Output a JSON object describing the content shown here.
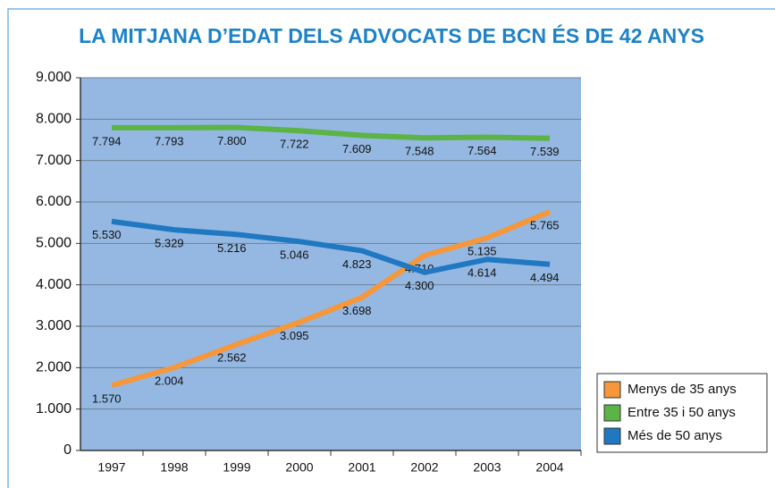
{
  "chart_data": {
    "type": "line",
    "title": "LA MITJANA D’EDAT DELS ADVOCATS DE BCN ÉS DE 42 ANYS",
    "categories": [
      "1997",
      "1998",
      "1999",
      "2000",
      "2001",
      "2002",
      "2003",
      "2004"
    ],
    "series": [
      {
        "name": "Menys de 35 anys",
        "color": "#f5973a",
        "values": [
          1570,
          2004,
          2562,
          3095,
          3698,
          4710,
          5135,
          5765
        ],
        "value_labels": [
          "1.570",
          "2.004",
          "2.562",
          "3.095",
          "3.698",
          "4.710",
          "5.135",
          "5.765"
        ]
      },
      {
        "name": "Entre 35 i 50 anys",
        "color": "#5cb346",
        "values": [
          7794,
          7793,
          7800,
          7722,
          7609,
          7548,
          7564,
          7539
        ],
        "value_labels": [
          "7.794",
          "7.793",
          "7.800",
          "7.722",
          "7.609",
          "7.548",
          "7.564",
          "7.539"
        ]
      },
      {
        "name": "Més de 50 anys",
        "color": "#1f78c1",
        "values": [
          5530,
          5329,
          5216,
          5046,
          4823,
          4300,
          4614,
          4494
        ],
        "value_labels": [
          "5.530",
          "5.329",
          "5.216",
          "5.046",
          "4.823",
          "4.300",
          "4.614",
          "4.494"
        ]
      }
    ],
    "ylim": [
      0,
      9000
    ],
    "yticks": [
      0,
      {
        "value": 1000,
        "label": "1.000"
      },
      {
        "value": 2000,
        "label": "2.000"
      },
      {
        "value": 3000,
        "label": "3.000"
      },
      {
        "value": 4000,
        "label": "4.000"
      },
      {
        "value": 5000,
        "label": "5.000"
      },
      {
        "value": 6000,
        "label": "6.000"
      },
      {
        "value": 7000,
        "label": "7.000"
      },
      {
        "value": 8000,
        "label": "8.000"
      },
      {
        "value": 9000,
        "label": "9.000"
      }
    ],
    "grid": true,
    "legend": "lower right"
  }
}
